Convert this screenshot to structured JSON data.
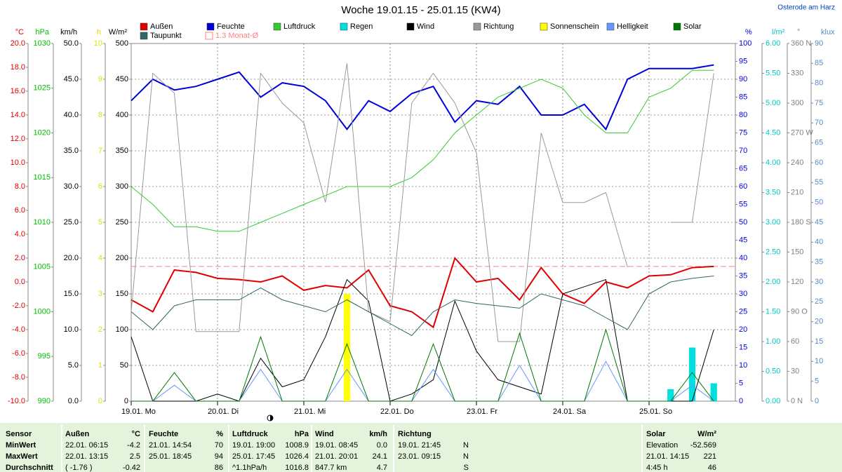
{
  "chart_data": {
    "type": "line",
    "title": "Woche 19.01.15 - 25.01.15 (KW4)",
    "location": "Osterode am Harz",
    "categories": [
      "19.01. Mo",
      null,
      null,
      null,
      "20.01. Di",
      null,
      null,
      null,
      "21.01. Mi",
      null,
      null,
      null,
      "22.01. Do",
      null,
      null,
      null,
      "23.01. Fr",
      null,
      null,
      null,
      "24.01. Sa",
      null,
      null,
      null,
      "25.01. So",
      null,
      null,
      null
    ],
    "axes": [
      {
        "unit": "°C",
        "color": "#e00000",
        "side": "left",
        "ylim": [
          -10,
          20
        ],
        "yticks": [
          {
            "value": -10,
            "label": "-10.0"
          },
          {
            "value": -8,
            "label": "-8.0"
          },
          {
            "value": -6,
            "label": "-6.0"
          },
          {
            "value": -4,
            "label": "-4.0"
          },
          {
            "value": -2,
            "label": "-2.0"
          },
          {
            "value": 0,
            "label": "0.0"
          },
          {
            "value": 2,
            "label": "2.0"
          },
          {
            "value": 4,
            "label": "4.0"
          },
          {
            "value": 6,
            "label": "6.0"
          },
          {
            "value": 8,
            "label": "8.0"
          },
          {
            "value": 10,
            "label": "10.0"
          },
          {
            "value": 12,
            "label": "12.0"
          },
          {
            "value": 14,
            "label": "14.0"
          },
          {
            "value": 16,
            "label": "16.0"
          },
          {
            "value": 18,
            "label": "18.0"
          },
          {
            "value": 20,
            "label": "20.0"
          }
        ]
      },
      {
        "unit": "hPa",
        "color": "#00c000",
        "side": "left",
        "ylim": [
          990,
          1030
        ],
        "yticks": [
          990,
          995,
          1000,
          1005,
          1010,
          1015,
          1020,
          1025,
          1030
        ]
      },
      {
        "unit": "km/h",
        "color": "#000000",
        "side": "left",
        "ylim": [
          0,
          50
        ],
        "yticks": [
          {
            "value": 0,
            "label": "0.0"
          },
          {
            "value": 5,
            "label": "5.0"
          },
          {
            "value": 10,
            "label": "10.0"
          },
          {
            "value": 15,
            "label": "15.0"
          },
          {
            "value": 20,
            "label": "20.0"
          },
          {
            "value": 25,
            "label": "25.0"
          },
          {
            "value": 30,
            "label": "30.0"
          },
          {
            "value": 35,
            "label": "35.0"
          },
          {
            "value": 40,
            "label": "40.0"
          },
          {
            "value": 45,
            "label": "45.0"
          },
          {
            "value": 50,
            "label": "50.0"
          }
        ]
      },
      {
        "unit": "h",
        "color": "#e0e000",
        "side": "left",
        "ylim": [
          0,
          10
        ],
        "yticks": [
          0,
          1,
          2,
          3,
          4,
          5,
          6,
          7,
          8,
          9,
          10
        ]
      },
      {
        "unit": "W/m²",
        "color": "#000000",
        "side": "left",
        "ylim": [
          0,
          500
        ],
        "yticks": [
          0,
          50,
          100,
          150,
          200,
          250,
          300,
          350,
          400,
          450,
          500
        ],
        "grid": true
      },
      {
        "unit": "%",
        "color": "#0000e0",
        "side": "right",
        "ylim": [
          0,
          100
        ],
        "yticks": [
          0,
          5,
          10,
          15,
          20,
          25,
          30,
          35,
          40,
          45,
          50,
          55,
          60,
          65,
          70,
          75,
          80,
          85,
          90,
          95,
          100
        ]
      },
      {
        "unit": "l/m²",
        "color": "#00c8c8",
        "side": "right",
        "ylim": [
          0,
          6
        ],
        "yticks": [
          {
            "value": 0,
            "label": "0.00"
          },
          {
            "value": 0.5,
            "label": "0.50"
          },
          {
            "value": 1,
            "label": "1.00"
          },
          {
            "value": 1.5,
            "label": "1.50"
          },
          {
            "value": 2,
            "label": "2.00"
          },
          {
            "value": 2.5,
            "label": "2.50"
          },
          {
            "value": 3,
            "label": "3.00"
          },
          {
            "value": 3.5,
            "label": "3.50"
          },
          {
            "value": 4,
            "label": "4.00"
          },
          {
            "value": 4.5,
            "label": "4.50"
          },
          {
            "value": 5,
            "label": "5.00"
          },
          {
            "value": 5.5,
            "label": "5.50"
          },
          {
            "value": 6,
            "label": "6.00"
          }
        ]
      },
      {
        "unit": "°",
        "color": "#808080",
        "side": "right",
        "ylim": [
          0,
          360
        ],
        "yticks": [
          {
            "value": 0,
            "label": "0 N"
          },
          30,
          60,
          {
            "value": 90,
            "label": "90 O"
          },
          120,
          150,
          {
            "value": 180,
            "label": "180 S"
          },
          210,
          240,
          {
            "value": 270,
            "label": "270 W"
          },
          300,
          330,
          {
            "value": 360,
            "label": "360 N"
          }
        ]
      },
      {
        "unit": "klux",
        "color": "#5a8ac8",
        "side": "right",
        "ylim": [
          0,
          90
        ],
        "yticks": [
          0,
          5,
          10,
          15,
          20,
          25,
          30,
          35,
          40,
          45,
          50,
          55,
          60,
          65,
          70,
          75,
          80,
          85,
          90
        ]
      }
    ],
    "series": [
      {
        "name": "Außen",
        "color": "#e00000",
        "axis": "°C",
        "style": "line",
        "width": 2,
        "values": [
          -1.5,
          -2.5,
          1.0,
          0.8,
          0.3,
          0.2,
          0,
          0.5,
          -0.7,
          -0.3,
          -0.5,
          1.0,
          -2.0,
          -2.5,
          -3.8,
          2.0,
          0,
          0.3,
          -1.5,
          1.2,
          -1.0,
          -1.8,
          0,
          -0.5,
          0.5,
          0.6,
          1.2,
          1.3
        ]
      },
      {
        "name": "Feuchte",
        "color": "#0000dd",
        "axis": "%",
        "style": "line",
        "width": 2,
        "values": [
          84,
          90,
          87,
          88,
          90,
          92,
          85,
          89,
          88,
          84,
          76,
          84,
          81,
          86,
          88,
          78,
          84,
          83,
          88,
          80,
          80,
          83,
          76,
          90,
          93,
          93,
          93,
          94
        ]
      },
      {
        "name": "Luftdruck",
        "color": "#33cc33",
        "axis": "hPa",
        "style": "line",
        "width": 1,
        "values": [
          1014,
          1012,
          1009.5,
          1009.5,
          1009,
          1009,
          1010,
          1011,
          1012,
          1013,
          1014,
          1014,
          1014,
          1015,
          1017,
          1020,
          1022,
          1024,
          1025,
          1026,
          1025,
          1022,
          1020,
          1020,
          1024,
          1025,
          1027,
          1027
        ]
      },
      {
        "name": "Regen",
        "color": "#00e0e0",
        "axis": "l/m²",
        "style": "bar",
        "values": [
          0,
          0,
          0,
          0,
          0,
          0,
          0,
          0,
          0,
          0,
          0,
          0,
          0,
          0,
          0,
          0,
          0,
          0,
          0,
          0,
          0,
          0,
          0,
          0,
          0,
          0.2,
          0.9,
          0.3
        ]
      },
      {
        "name": "Wind",
        "color": "#000000",
        "axis": "km/h",
        "style": "line",
        "width": 1,
        "values": [
          9,
          0,
          0,
          0,
          1,
          0,
          6,
          2,
          3,
          9,
          17,
          14,
          0,
          1,
          3,
          14,
          7,
          3,
          2,
          1,
          15,
          16,
          17,
          0,
          0,
          0,
          0,
          10
        ]
      },
      {
        "name": "Richtung",
        "color": "#999999",
        "axis": "°",
        "style": "line",
        "width": 1,
        "values": [
          90,
          330,
          310,
          70,
          70,
          70,
          330,
          300,
          280,
          200,
          340,
          90,
          80,
          300,
          330,
          300,
          250,
          60,
          60,
          270,
          200,
          200,
          210,
          135,
          null,
          180,
          180,
          330
        ]
      },
      {
        "name": "Sonnenschein",
        "color": "#ffff00",
        "axis": "h",
        "style": "bar",
        "values": [
          0,
          0,
          0,
          0,
          0,
          0,
          0,
          0,
          0,
          0,
          3,
          0,
          0,
          0,
          0,
          0,
          0,
          0,
          0,
          0,
          0,
          0,
          0,
          0,
          0,
          0,
          0,
          0
        ]
      },
      {
        "name": "Helligkeit",
        "color": "#6699ff",
        "axis": "klux",
        "style": "line",
        "width": 1,
        "values": [
          0,
          0,
          4,
          0,
          0,
          0,
          8,
          0,
          0,
          0,
          8,
          0,
          0,
          0,
          8,
          0,
          0,
          0,
          9,
          0,
          0,
          0,
          10,
          0,
          0,
          0,
          4,
          0
        ]
      },
      {
        "name": "Solar",
        "color": "#007700",
        "axis": "W/m²",
        "style": "line",
        "width": 1,
        "values": [
          0,
          0,
          40,
          0,
          0,
          0,
          90,
          0,
          0,
          0,
          80,
          0,
          0,
          0,
          80,
          0,
          0,
          0,
          95,
          0,
          0,
          0,
          100,
          0,
          0,
          0,
          40,
          0
        ]
      },
      {
        "name": "Taupunkt",
        "color": "#336666",
        "axis": "°C",
        "style": "line",
        "width": 1,
        "values": [
          -2.5,
          -4,
          -2,
          -1.5,
          -1.5,
          -1.5,
          -0.5,
          -1.5,
          -2,
          -2.5,
          -1.5,
          -2.5,
          -3.5,
          -4.5,
          -2.5,
          -1.5,
          -1.8,
          -2,
          -2.2,
          -1,
          -1.5,
          -2,
          -3,
          -4,
          -1,
          0,
          0.3,
          0.5
        ]
      }
    ],
    "reference": {
      "name": "1.3 Monat-Ø",
      "value": 1.3,
      "axis": "°C",
      "color": "#ff8080"
    }
  },
  "table": {
    "rows": [
      [
        "Sensor",
        "Außen",
        "°C",
        "Feuchte",
        "%",
        "Luftdruck",
        "hPa",
        "Wind",
        "km/h",
        "Richtung",
        null,
        "Solar",
        "W/m²"
      ],
      [
        "MinWert",
        "22.01. 06:15",
        "-4.2",
        "21.01. 14:54",
        "70",
        "19.01. 19:00",
        "1008.9",
        "19.01. 08:45",
        "0.0",
        "19.01. 21:45",
        "N",
        "Elevation",
        "-52.569"
      ],
      [
        "MaxWert",
        "22.01. 13:15",
        "2.5",
        "25.01. 18:45",
        "94",
        "25.01. 17:45",
        "1026.4",
        "21.01. 20:01",
        "24.1",
        "23.01. 09:15",
        "N",
        "21.01. 14:15",
        "221"
      ],
      [
        "Durchschnitt",
        "( -1.76 )",
        "-0.42",
        null,
        "86",
        "^1.1hPa/h",
        "1016.8",
        "847.7 km",
        "4.7",
        null,
        "S",
        "4:45 h",
        "46"
      ]
    ]
  }
}
